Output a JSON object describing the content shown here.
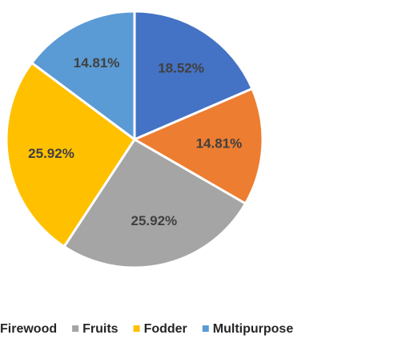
{
  "chart_data": {
    "type": "pie",
    "categories": [
      null,
      "Firewood",
      "Fruits",
      "Fodder",
      "Multipurpose"
    ],
    "values": [
      18.52,
      14.81,
      25.92,
      25.92,
      14.81
    ],
    "value_labels": [
      "18.52%",
      "14.81%",
      "25.92%",
      "25.92%",
      "14.81%"
    ],
    "colors": [
      "#4472c4",
      "#ed7d31",
      "#a5a5a5",
      "#ffc000",
      "#5b9bd5"
    ],
    "legend": "bottom"
  }
}
